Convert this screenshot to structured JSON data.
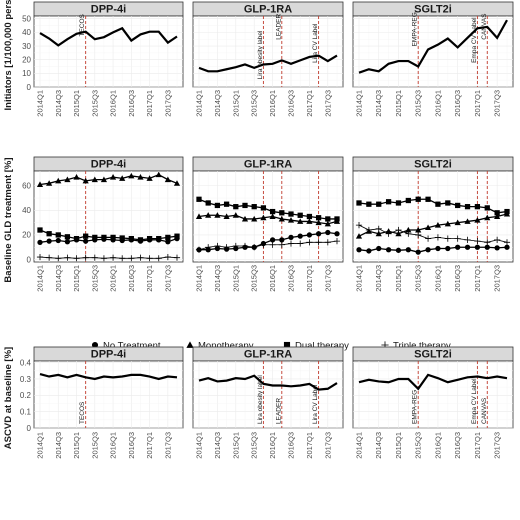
{
  "chart_data": [
    {
      "type": "line",
      "id": "initiators",
      "ylabel": "Initiators [1/100,000 persons]",
      "ylim": [
        0,
        52
      ],
      "yticks": [
        0,
        10,
        20,
        30,
        40,
        50
      ],
      "quarters": [
        "2014Q1",
        "2014Q2",
        "2014Q3",
        "2014Q4",
        "2015Q1",
        "2015Q2",
        "2015Q3",
        "2015Q4",
        "2016Q1",
        "2016Q2",
        "2016Q3",
        "2016Q4",
        "2017Q1",
        "2017Q2",
        "2017Q3",
        "2017Q4"
      ],
      "xtick_labels": [
        "2014Q1",
        "2014Q3",
        "2015Q1",
        "2015Q3",
        "2016Q1",
        "2016Q3",
        "2017Q1",
        "2017Q3"
      ],
      "panels": [
        {
          "name": "DPP-4i",
          "series": [
            {
              "values": [
                39.5,
                35.5,
                30.5,
                35,
                39,
                40.5,
                35,
                36.5,
                40,
                43,
                34,
                38.5,
                40.5,
                40.5,
                32.5,
                37
              ]
            }
          ],
          "events": [
            {
              "label": "TECOS",
              "at": "2015Q2"
            }
          ]
        },
        {
          "name": "GLP-1RA",
          "series": [
            {
              "values": [
                14,
                11.5,
                11.5,
                13,
                14.5,
                16.5,
                14,
                16.5,
                17,
                19.5,
                17,
                19.5,
                22,
                23,
                19,
                23
              ]
            }
          ],
          "events": [
            {
              "label": "Lira obesity label",
              "at": "2015Q4"
            },
            {
              "label": "LEADER",
              "at": "2016Q2"
            },
            {
              "label": "Lira CV Label",
              "at": "2017Q2"
            }
          ]
        },
        {
          "name": "SGLT2i",
          "series": [
            {
              "values": [
                10.5,
                13,
                11.5,
                17,
                19,
                19,
                15,
                27.5,
                31,
                35.5,
                29,
                36,
                43,
                44,
                36,
                49
              ]
            }
          ],
          "events": [
            {
              "label": "EMPA-REG",
              "at": "2015Q3"
            },
            {
              "label": "Empa CV Label",
              "at": "2017Q1"
            },
            {
              "label": "CANVAS",
              "at": "2017Q2"
            }
          ]
        }
      ]
    },
    {
      "type": "line",
      "id": "baseline-gld",
      "ylabel": "Baseline GLD treatment [%]",
      "ylim": [
        -2,
        72
      ],
      "yticks": [
        0,
        20,
        40,
        60
      ],
      "quarters": [
        "2014Q1",
        "2014Q2",
        "2014Q3",
        "2014Q4",
        "2015Q1",
        "2015Q2",
        "2015Q3",
        "2015Q4",
        "2016Q1",
        "2016Q2",
        "2016Q3",
        "2016Q4",
        "2017Q1",
        "2017Q2",
        "2017Q3",
        "2017Q4"
      ],
      "xtick_labels": [
        "2014Q1",
        "2014Q3",
        "2015Q1",
        "2015Q3",
        "2016Q1",
        "2016Q3",
        "2017Q1",
        "2017Q3"
      ],
      "legend": [
        {
          "name": "No Treatment",
          "marker": "circle"
        },
        {
          "name": "Monotherapy",
          "marker": "triangle"
        },
        {
          "name": "Dual therapy",
          "marker": "square"
        },
        {
          "name": "Triple therapy",
          "marker": "plus"
        }
      ],
      "panels": [
        {
          "name": "DPP-4i",
          "series": [
            {
              "marker": "circle",
              "values": [
                14,
                15,
                15.5,
                14.5,
                16,
                15,
                16,
                16.5,
                16,
                15.5,
                16,
                15,
                16,
                16,
                14.5,
                17
              ]
            },
            {
              "marker": "triangle",
              "values": [
                61,
                62,
                64,
                65,
                67,
                64,
                65,
                65,
                67,
                66,
                68,
                67,
                66,
                69,
                65,
                62
              ]
            },
            {
              "marker": "square",
              "values": [
                24,
                21,
                20,
                18.5,
                17,
                19,
                18,
                18,
                18,
                17.5,
                17,
                16,
                17,
                17,
                18,
                19
              ]
            },
            {
              "marker": "plus",
              "values": [
                2,
                1.5,
                1,
                1.5,
                1,
                1.5,
                1.5,
                1,
                1.5,
                1,
                1,
                1.5,
                1,
                1,
                2,
                1.5
              ]
            }
          ],
          "events": [
            {
              "label": "TECOS",
              "at": "2015Q2"
            }
          ]
        },
        {
          "name": "GLP-1RA",
          "series": [
            {
              "marker": "circle",
              "values": [
                8,
                8,
                9,
                8.5,
                9,
                10,
                10,
                13,
                16,
                16,
                18,
                19,
                20,
                21,
                22,
                21
              ]
            },
            {
              "marker": "triangle",
              "values": [
                35,
                36,
                36,
                35,
                36,
                33,
                33,
                34,
                35,
                33,
                32,
                31,
                31,
                30,
                29,
                31
              ]
            },
            {
              "marker": "square",
              "values": [
                49,
                46,
                44,
                45,
                43,
                44,
                43,
                42,
                39,
                38,
                37,
                36,
                35,
                34,
                33,
                33
              ]
            },
            {
              "marker": "plus",
              "values": [
                8,
                10,
                11,
                10,
                11,
                11,
                10,
                12,
                12,
                12,
                13,
                13,
                14,
                14,
                14,
                15
              ]
            }
          ],
          "events": [
            {
              "label": "Lira obesity label",
              "at": "2015Q4"
            },
            {
              "label": "LEADER",
              "at": "2016Q2"
            },
            {
              "label": "Lira CV Label",
              "at": "2017Q2"
            }
          ]
        },
        {
          "name": "SGLT2i",
          "series": [
            {
              "marker": "circle",
              "values": [
                8,
                7,
                9,
                8,
                7.5,
                8,
                6,
                8,
                9,
                9,
                10,
                10,
                10,
                10,
                9.5,
                10
              ]
            },
            {
              "marker": "triangle",
              "values": [
                19,
                23,
                21,
                23,
                21,
                24,
                24,
                26,
                28,
                29,
                30,
                31,
                32,
                34,
                35,
                37
              ]
            },
            {
              "marker": "square",
              "values": [
                46,
                45,
                45,
                47,
                46,
                48,
                49,
                49,
                45,
                46,
                44,
                43,
                43,
                42,
                38,
                39
              ]
            },
            {
              "marker": "plus",
              "values": [
                28,
                24,
                25,
                21,
                24,
                21,
                20,
                17,
                18,
                17,
                17,
                16,
                15,
                14,
                16,
                14
              ]
            }
          ],
          "events": [
            {
              "label": "EMPA-REG",
              "at": "2015Q3"
            },
            {
              "label": "Empa CV Label",
              "at": "2017Q1"
            },
            {
              "label": "CANVAS",
              "at": "2017Q2"
            }
          ]
        }
      ]
    },
    {
      "type": "line",
      "id": "ascvd",
      "ylabel": "ASCVD at baseline [%]",
      "ylim": [
        0,
        0.41
      ],
      "yticks": [
        0.0,
        0.1,
        0.2,
        0.3,
        0.4
      ],
      "quarters": [
        "2014Q1",
        "2014Q2",
        "2014Q3",
        "2014Q4",
        "2015Q1",
        "2015Q2",
        "2015Q3",
        "2015Q4",
        "2016Q1",
        "2016Q2",
        "2016Q3",
        "2016Q4",
        "2017Q1",
        "2017Q2",
        "2017Q3",
        "2017Q4"
      ],
      "xtick_labels": [
        "2014Q1",
        "2014Q3",
        "2015Q1",
        "2015Q3",
        "2016Q1",
        "2016Q3",
        "2017Q1",
        "2017Q3"
      ],
      "panels": [
        {
          "name": "DPP-4i",
          "series": [
            {
              "values": [
                0.33,
                0.315,
                0.325,
                0.31,
                0.325,
                0.31,
                0.3,
                0.315,
                0.31,
                0.315,
                0.325,
                0.325,
                0.315,
                0.3,
                0.315,
                0.31
              ]
            }
          ],
          "events": [
            {
              "label": "TECOS",
              "at": "2015Q2"
            }
          ]
        },
        {
          "name": "GLP-1RA",
          "series": [
            {
              "values": [
                0.29,
                0.305,
                0.285,
                0.29,
                0.305,
                0.3,
                0.32,
                0.27,
                0.26,
                0.26,
                0.255,
                0.26,
                0.27,
                0.235,
                0.24,
                0.275
              ]
            }
          ],
          "events": [
            {
              "label": "Lira obesity label",
              "at": "2015Q4"
            },
            {
              "label": "LEADER",
              "at": "2016Q2"
            },
            {
              "label": "Lira CV Label",
              "at": "2017Q2"
            }
          ]
        },
        {
          "name": "SGLT2i",
          "series": [
            {
              "values": [
                0.28,
                0.295,
                0.285,
                0.28,
                0.3,
                0.3,
                0.24,
                0.325,
                0.305,
                0.28,
                0.295,
                0.31,
                0.315,
                0.305,
                0.315,
                0.305
              ]
            }
          ],
          "events": [
            {
              "label": "EMPA-REG",
              "at": "2015Q3"
            },
            {
              "label": "Empa CV Label",
              "at": "2017Q1"
            },
            {
              "label": "CANVAS",
              "at": "2017Q2"
            }
          ]
        }
      ]
    }
  ]
}
